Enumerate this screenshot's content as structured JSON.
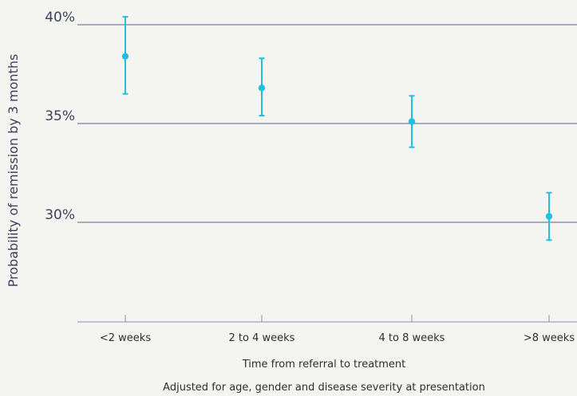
{
  "chart_data": {
    "type": "scatter",
    "categories": [
      "<2 weeks",
      "2 to 4 weeks",
      "4 to 8 weeks",
      ">8 weeks"
    ],
    "series": [
      {
        "values": [
          38.4,
          36.8,
          35.1,
          30.3
        ],
        "lower": [
          36.5,
          35.4,
          33.8,
          29.1
        ],
        "upper": [
          40.4,
          38.3,
          36.4,
          31.5
        ]
      }
    ],
    "y_ticks": [
      {
        "value": 40,
        "label": "40%"
      },
      {
        "value": 35,
        "label": "35%"
      },
      {
        "value": 30,
        "label": "30%"
      }
    ],
    "ylim": [
      25,
      41
    ],
    "ylabel": "Probability of remission by 3 months",
    "xlabel": "Time from referral to treatment",
    "note": "Adjusted for age, gender and disease severity at presentation",
    "grid": true,
    "colors": {
      "point": "#22c0e0",
      "grid": "#5a5f86",
      "axis": "#8a8fb0",
      "text": "#3a3f5c",
      "background": "#f4f5f0"
    }
  }
}
